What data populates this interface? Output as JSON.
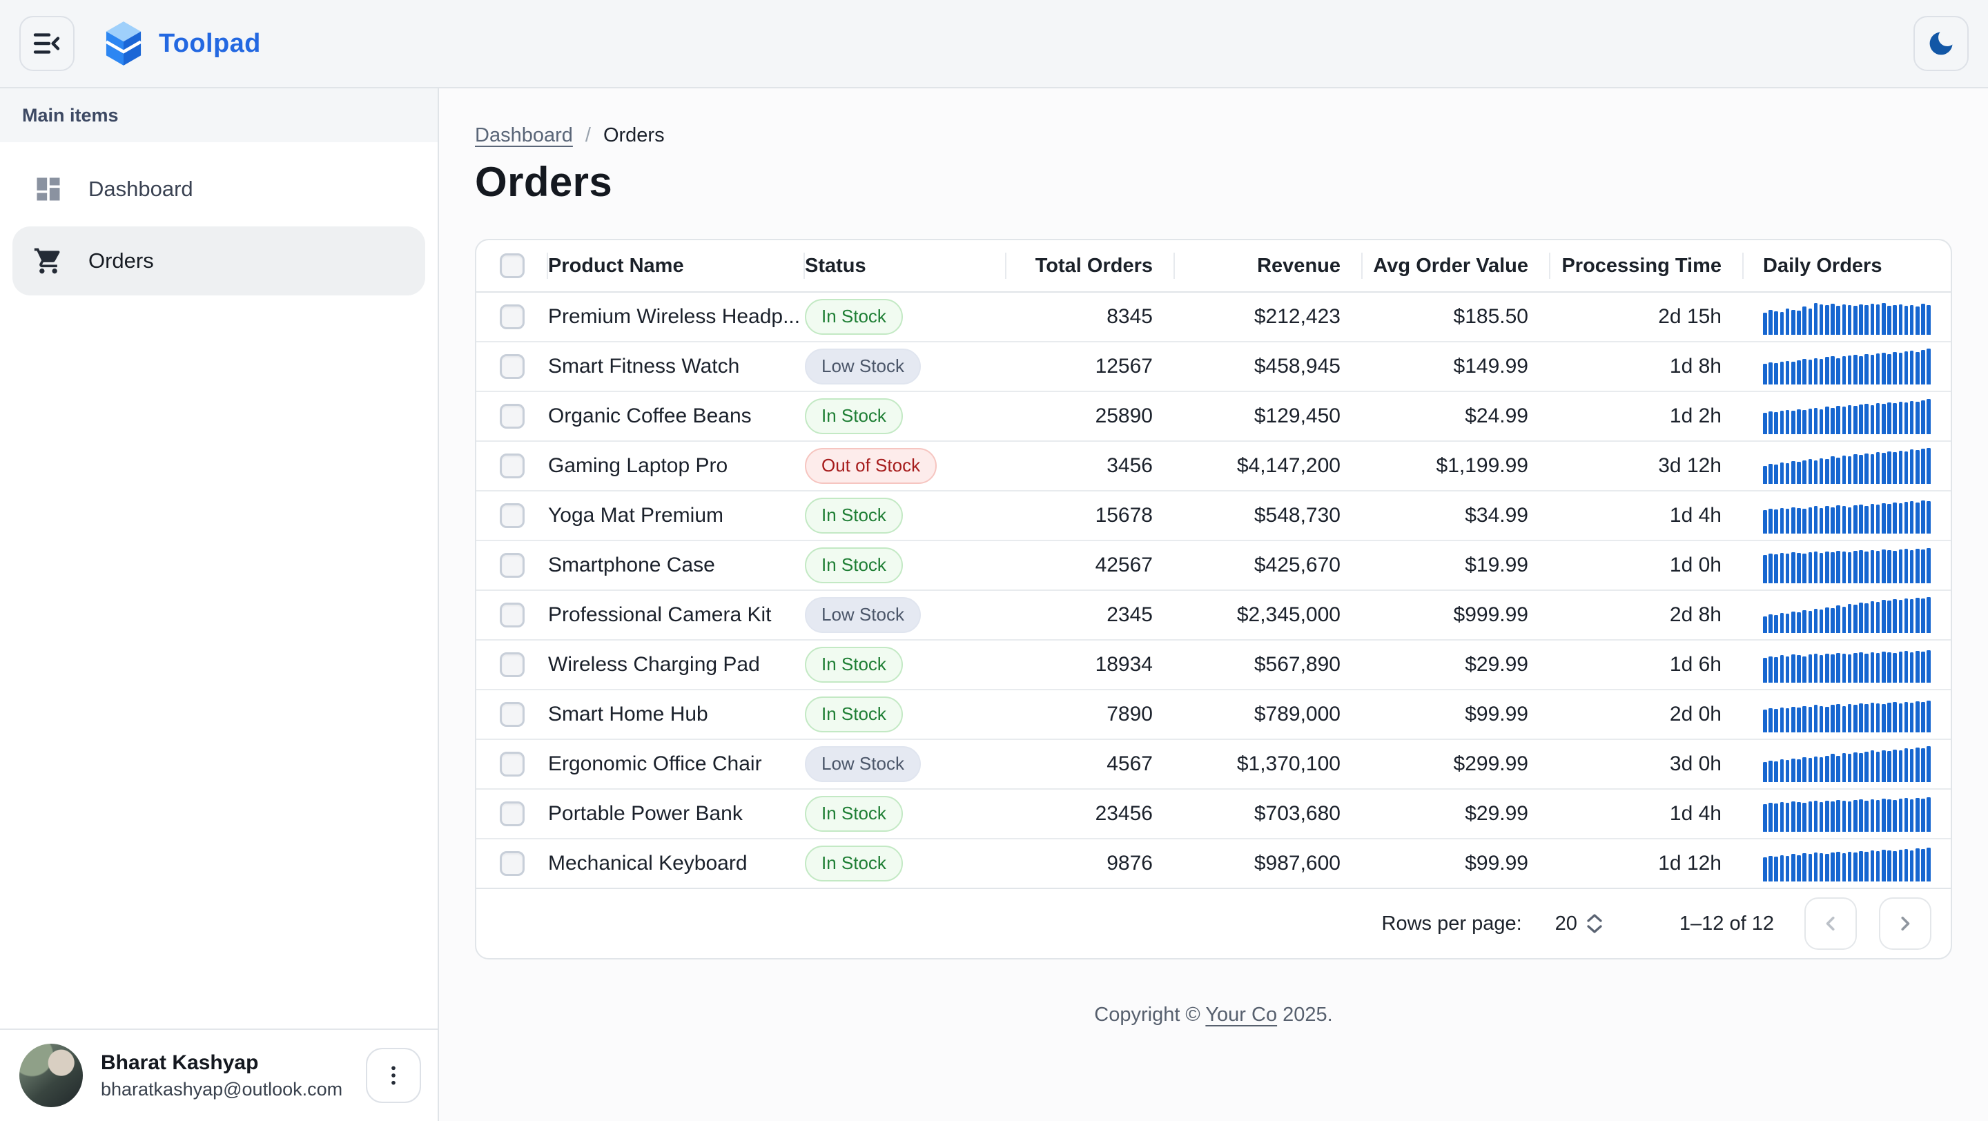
{
  "app": {
    "title": "Toolpad"
  },
  "colors": {
    "brand_primary": "#2368e1",
    "sparkline": "#1666d0",
    "moon_icon": "#1257a6",
    "status_in_stock_text": "#1e7e34",
    "status_in_stock_bg": "#f1fbf1",
    "status_low_stock_text": "#4b5669",
    "status_low_stock_bg": "#e5e9f2",
    "status_out_of_stock_text": "#a61c1c",
    "status_out_of_stock_bg": "#fdeceb"
  },
  "header": {
    "menu_icon": "collapse-menu-icon",
    "theme_icon": "moon-icon"
  },
  "sidebar": {
    "section_label": "Main items",
    "items": [
      {
        "label": "Dashboard",
        "icon": "dashboard-icon",
        "active": false
      },
      {
        "label": "Orders",
        "icon": "shopping-cart-icon",
        "active": true
      }
    ],
    "user": {
      "name": "Bharat Kashyap",
      "email": "bharatkashyap@outlook.com",
      "menu_icon": "kebab-menu-icon"
    }
  },
  "breadcrumb": {
    "link": "Dashboard",
    "separator": "/",
    "current": "Orders"
  },
  "page": {
    "title": "Orders"
  },
  "table": {
    "columns": [
      "",
      "Product Name",
      "Status",
      "Total Orders",
      "Revenue",
      "Avg Order Value",
      "Processing Time",
      "Daily Orders"
    ],
    "rows": [
      {
        "name": "Premium Wireless Headp...",
        "status": "In Stock",
        "status_type": "in",
        "total": "8345",
        "revenue": "$212,423",
        "avg": "$185.50",
        "processing": "2d 15h",
        "daily": [
          62,
          70,
          66,
          64,
          74,
          70,
          68,
          78,
          74,
          88,
          84,
          82,
          86,
          80,
          84,
          82,
          80,
          84,
          82,
          86,
          84,
          88,
          80,
          82,
          84,
          80,
          82,
          78,
          86,
          82
        ]
      },
      {
        "name": "Smart Fitness Watch",
        "status": "Low Stock",
        "status_type": "low",
        "total": "12567",
        "revenue": "$458,945",
        "avg": "$149.99",
        "processing": "1d 8h",
        "daily": [
          58,
          62,
          60,
          64,
          66,
          64,
          68,
          72,
          70,
          74,
          72,
          76,
          78,
          74,
          78,
          80,
          82,
          78,
          84,
          82,
          86,
          88,
          84,
          90,
          88,
          92,
          94,
          90,
          96,
          100
        ]
      },
      {
        "name": "Organic Coffee Beans",
        "status": "In Stock",
        "status_type": "in",
        "total": "25890",
        "revenue": "$129,450",
        "avg": "$24.99",
        "processing": "1d 2h",
        "daily": [
          60,
          64,
          62,
          66,
          68,
          66,
          70,
          68,
          72,
          74,
          70,
          76,
          74,
          78,
          76,
          80,
          78,
          82,
          84,
          80,
          86,
          84,
          88,
          86,
          90,
          88,
          92,
          90,
          94,
          98
        ]
      },
      {
        "name": "Gaming Laptop Pro",
        "status": "Out of Stock",
        "status_type": "out",
        "total": "3456",
        "revenue": "$4,147,200",
        "avg": "$1,199.99",
        "processing": "3d 12h",
        "daily": [
          50,
          56,
          54,
          60,
          58,
          64,
          62,
          66,
          70,
          66,
          72,
          70,
          76,
          74,
          78,
          76,
          82,
          80,
          84,
          82,
          88,
          86,
          90,
          88,
          92,
          90,
          96,
          94,
          98,
          100
        ]
      },
      {
        "name": "Yoga Mat Premium",
        "status": "In Stock",
        "status_type": "in",
        "total": "15678",
        "revenue": "$548,730",
        "avg": "$34.99",
        "processing": "1d 4h",
        "daily": [
          66,
          70,
          68,
          72,
          70,
          74,
          72,
          70,
          74,
          76,
          72,
          76,
          74,
          78,
          76,
          74,
          78,
          80,
          76,
          82,
          80,
          84,
          82,
          86,
          84,
          88,
          90,
          86,
          92,
          90
        ]
      },
      {
        "name": "Smartphone Case",
        "status": "In Stock",
        "status_type": "in",
        "total": "42567",
        "revenue": "$425,670",
        "avg": "$19.99",
        "processing": "1d 0h",
        "daily": [
          78,
          82,
          80,
          84,
          82,
          86,
          84,
          82,
          86,
          88,
          84,
          88,
          86,
          90,
          88,
          86,
          90,
          92,
          88,
          92,
          90,
          94,
          92,
          90,
          94,
          96,
          92,
          96,
          94,
          98
        ]
      },
      {
        "name": "Professional Camera Kit",
        "status": "Low Stock",
        "status_type": "low",
        "total": "2345",
        "revenue": "$2,345,000",
        "avg": "$999.99",
        "processing": "2d 8h",
        "daily": [
          46,
          52,
          50,
          56,
          54,
          60,
          58,
          64,
          62,
          68,
          66,
          72,
          70,
          76,
          74,
          80,
          78,
          84,
          82,
          88,
          86,
          92,
          90,
          94,
          92,
          96,
          94,
          98,
          96,
          100
        ]
      },
      {
        "name": "Wireless Charging Pad",
        "status": "In Stock",
        "status_type": "in",
        "total": "18934",
        "revenue": "$567,890",
        "avg": "$29.99",
        "processing": "1d 6h",
        "daily": [
          70,
          74,
          72,
          76,
          74,
          78,
          76,
          74,
          78,
          80,
          76,
          80,
          78,
          82,
          80,
          78,
          82,
          84,
          80,
          84,
          82,
          86,
          84,
          82,
          86,
          88,
          84,
          88,
          86,
          90
        ]
      },
      {
        "name": "Smart Home Hub",
        "status": "In Stock",
        "status_type": "in",
        "total": "7890",
        "revenue": "$789,000",
        "avg": "$99.99",
        "processing": "2d 0h",
        "daily": [
          64,
          68,
          66,
          70,
          68,
          72,
          70,
          74,
          72,
          76,
          74,
          72,
          76,
          78,
          74,
          78,
          76,
          80,
          78,
          82,
          80,
          78,
          82,
          84,
          80,
          84,
          82,
          86,
          84,
          88
        ]
      },
      {
        "name": "Ergonomic Office Chair",
        "status": "Low Stock",
        "status_type": "low",
        "total": "4567",
        "revenue": "$1,370,100",
        "avg": "$299.99",
        "processing": "3d 0h",
        "daily": [
          56,
          60,
          58,
          64,
          62,
          66,
          64,
          70,
          68,
          72,
          70,
          74,
          78,
          74,
          80,
          78,
          82,
          80,
          84,
          88,
          84,
          88,
          86,
          90,
          88,
          94,
          92,
          96,
          94,
          100
        ]
      },
      {
        "name": "Portable Power Bank",
        "status": "In Stock",
        "status_type": "in",
        "total": "23456",
        "revenue": "$703,680",
        "avg": "$29.99",
        "processing": "1d 4h",
        "daily": [
          76,
          80,
          78,
          82,
          80,
          84,
          82,
          80,
          84,
          86,
          82,
          86,
          84,
          88,
          86,
          84,
          88,
          90,
          86,
          90,
          88,
          92,
          90,
          88,
          92,
          94,
          90,
          94,
          92,
          96
        ]
      },
      {
        "name": "Mechanical Keyboard",
        "status": "In Stock",
        "status_type": "in",
        "total": "9876",
        "revenue": "$987,600",
        "avg": "$99.99",
        "processing": "1d 12h",
        "daily": [
          68,
          72,
          70,
          74,
          72,
          76,
          74,
          78,
          76,
          80,
          78,
          76,
          80,
          82,
          78,
          82,
          80,
          84,
          82,
          86,
          84,
          88,
          86,
          84,
          88,
          90,
          86,
          92,
          90,
          94
        ]
      }
    ]
  },
  "pagination": {
    "rows_per_page_label": "Rows per page:",
    "rows_per_page_value": "20",
    "range": "1–12 of 12",
    "prev_icon": "chevron-left-icon",
    "next_icon": "chevron-right-icon"
  },
  "footer": {
    "prefix": "Copyright ©",
    "company": "Your Co",
    "suffix": "2025."
  }
}
